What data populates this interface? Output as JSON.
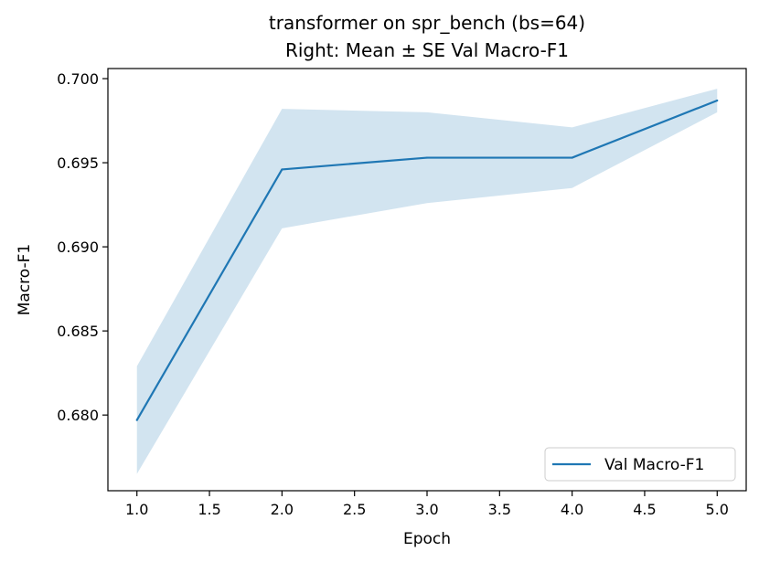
{
  "chart_data": {
    "type": "line",
    "title": "transformer on spr_bench (bs=64)",
    "subtitle": "Right: Mean ± SE Val Macro-F1",
    "xlabel": "Epoch",
    "ylabel": "Macro-F1",
    "xlim": [
      0.8,
      5.2
    ],
    "ylim": [
      0.6755,
      0.7006
    ],
    "x_ticks": [
      "1.0",
      "1.5",
      "2.0",
      "2.5",
      "3.0",
      "3.5",
      "4.0",
      "4.5",
      "5.0"
    ],
    "y_ticks": [
      "0.680",
      "0.685",
      "0.690",
      "0.695",
      "0.700"
    ],
    "grid": false,
    "legend_position": "lower-right",
    "series": [
      {
        "name": "Val Macro-F1",
        "color": "#1f77b4",
        "x": [
          1,
          2,
          3,
          4,
          5
        ],
        "values": [
          0.6797,
          0.6946,
          0.6953,
          0.6953,
          0.6987
        ],
        "upper": [
          0.6829,
          0.6982,
          0.698,
          0.6971,
          0.6994
        ],
        "lower": [
          0.6765,
          0.6911,
          0.6926,
          0.6935,
          0.698
        ]
      }
    ]
  }
}
